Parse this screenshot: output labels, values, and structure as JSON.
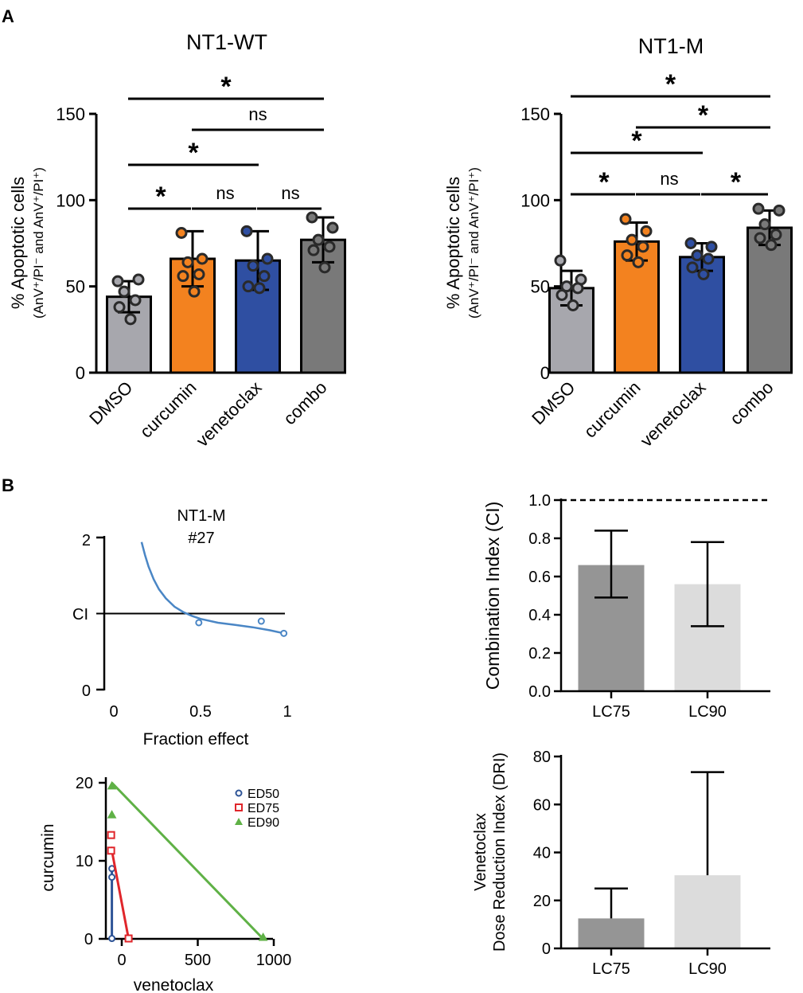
{
  "panels": {
    "A": "A",
    "B": "B"
  },
  "colors": {
    "dmso": "#a7a7ad",
    "curcumin": "#f3821f",
    "venetoclax": "#2f4fa2",
    "combo": "#797979",
    "fit_line": "#4a86c5",
    "ci_lc75": "#959595",
    "ci_lc90": "#dcdcdc",
    "ed50": "#2f5597",
    "ed75": "#e0262b",
    "ed90": "#5fb146"
  },
  "chart_data": [
    {
      "id": "nt1-wt",
      "type": "bar",
      "title": "NT1-WT",
      "ylabel": "% Apoptotic cells",
      "ylabel_sub": "(AnV⁺/PI⁻ and AnV⁺/PI⁺)",
      "ylim": [
        0,
        150
      ],
      "yticks": [
        "0",
        "50",
        "100",
        "150"
      ],
      "categories": [
        "DMSO",
        "curcumin",
        "venetoclax",
        "combo"
      ],
      "values": [
        44,
        66,
        65,
        77
      ],
      "errors": [
        9,
        16,
        17,
        13
      ],
      "points": [
        [
          53,
          54,
          47,
          42,
          38,
          31
        ],
        [
          81,
          66,
          64,
          57,
          56,
          47
        ],
        [
          82,
          66,
          62,
          56,
          50,
          49
        ],
        [
          90,
          84,
          77,
          73,
          71,
          61
        ]
      ],
      "significance": [
        {
          "from": 0,
          "to": 3,
          "label": "*",
          "level": 4
        },
        {
          "from": 1,
          "to": 3,
          "label": "ns",
          "level": 3
        },
        {
          "from": 0,
          "to": 2,
          "label": "*",
          "level": 2
        },
        {
          "from": 0,
          "to": 1,
          "label": "*",
          "level": 1
        },
        {
          "from": 1,
          "to": 2,
          "label": "ns",
          "level": 1
        },
        {
          "from": 2,
          "to": 3,
          "label": "ns",
          "level": 1
        }
      ]
    },
    {
      "id": "nt1-m",
      "type": "bar",
      "title": "NT1-M",
      "ylabel": "% Apoptotic cells",
      "ylabel_sub": "(AnV⁺/PI⁻ and AnV⁺/PI⁺)",
      "ylim": [
        0,
        150
      ],
      "yticks": [
        "0",
        "50",
        "100",
        "150"
      ],
      "categories": [
        "DMSO",
        "curcumin",
        "venetoclax",
        "combo"
      ],
      "values": [
        49,
        76,
        67,
        84
      ],
      "errors": [
        10,
        11,
        8,
        10
      ],
      "points": [
        [
          65,
          54,
          50,
          49,
          45,
          39
        ],
        [
          89,
          82,
          77,
          73,
          68,
          64
        ],
        [
          75,
          73,
          68,
          66,
          61,
          57
        ],
        [
          95,
          94,
          86,
          80,
          78,
          74
        ]
      ],
      "significance": [
        {
          "from": 0,
          "to": 3,
          "label": "*",
          "level": 4
        },
        {
          "from": 1,
          "to": 3,
          "label": "*",
          "level": 3
        },
        {
          "from": 0,
          "to": 2,
          "label": "*",
          "level": 2
        },
        {
          "from": 0,
          "to": 1,
          "label": "*",
          "level": 1
        },
        {
          "from": 1,
          "to": 2,
          "label": "ns",
          "level": 1
        },
        {
          "from": 2,
          "to": 3,
          "label": "*",
          "level": 1
        }
      ]
    },
    {
      "id": "ci-fa",
      "type": "line",
      "title": "NT1-M",
      "subtitle": "#27",
      "xlabel": "Fraction effect",
      "ylabel": "CI",
      "xlim": [
        0,
        1
      ],
      "ylim": [
        0,
        2
      ],
      "xticks": [
        "0",
        "0.5",
        "1"
      ],
      "yticks": [
        "0",
        "2"
      ],
      "reference_line": 1,
      "curve_x": [
        0.16,
        0.18,
        0.2,
        0.23,
        0.26,
        0.3,
        0.35,
        0.4,
        0.45,
        0.5,
        0.6,
        0.7,
        0.8,
        0.9,
        0.98
      ],
      "curve_y": [
        1.94,
        1.77,
        1.62,
        1.45,
        1.32,
        1.2,
        1.09,
        1.02,
        0.97,
        0.93,
        0.88,
        0.85,
        0.82,
        0.78,
        0.74
      ],
      "points_x": [
        0.49,
        0.85,
        0.98
      ],
      "points_y": [
        0.88,
        0.9,
        0.74
      ]
    },
    {
      "id": "isobologram",
      "type": "scatter",
      "xlabel": "venetoclax",
      "ylabel": "curcumin",
      "xlim": [
        -90,
        1000
      ],
      "ylim": [
        0,
        20
      ],
      "xticks": [
        "0",
        "500",
        "1000"
      ],
      "yticks": [
        "0",
        "10",
        "20"
      ],
      "series": [
        {
          "name": "ED50",
          "marker": "circle",
          "line": [
            [
              -65,
              9.3
            ],
            [
              -65,
              0
            ]
          ],
          "points": [
            [
              -65,
              9.0
            ],
            [
              -65,
              7.9
            ],
            [
              -65,
              0.05
            ]
          ]
        },
        {
          "name": "ED75",
          "marker": "square",
          "line": [
            [
              -70,
              11.8
            ],
            [
              45,
              0
            ]
          ],
          "points": [
            [
              -70,
              13.3
            ],
            [
              -70,
              11.3
            ],
            [
              45,
              0.05
            ]
          ]
        },
        {
          "name": "ED90",
          "marker": "triangle",
          "line": [
            [
              -65,
              20
            ],
            [
              930,
              0
            ]
          ],
          "points": [
            [
              -65,
              19.6
            ],
            [
              -65,
              15.9
            ],
            [
              930,
              0.2
            ]
          ]
        }
      ]
    },
    {
      "id": "ci-bars",
      "type": "bar",
      "ylabel": "Combination Index (CI)",
      "ylim": [
        0,
        1
      ],
      "yticks": [
        "0.0",
        "0.2",
        "0.4",
        "0.6",
        "0.8",
        "1.0"
      ],
      "reference_line": 1.0,
      "categories": [
        "LC75",
        "LC90"
      ],
      "values": [
        0.66,
        0.56
      ],
      "err_low": [
        0.49,
        0.34
      ],
      "err_high": [
        0.84,
        0.78
      ]
    },
    {
      "id": "dri-bars",
      "type": "bar",
      "ylabel": "Venetoclax",
      "ylabel_sub": "Dose Reduction Index (DRI)",
      "ylim": [
        0,
        80
      ],
      "yticks": [
        "0",
        "20",
        "40",
        "60",
        "80"
      ],
      "categories": [
        "LC75",
        "LC90"
      ],
      "values": [
        12.5,
        30.5
      ],
      "err_low": [
        12.5,
        30.5
      ],
      "err_high": [
        25,
        73.5
      ]
    }
  ]
}
